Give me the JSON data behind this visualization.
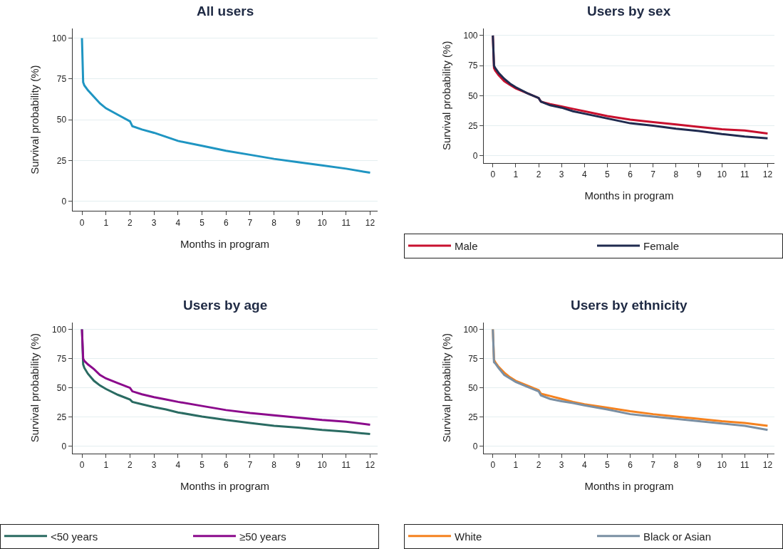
{
  "chart_data": [
    {
      "type": "line",
      "title": "All users",
      "xlabel": "Months in program",
      "ylabel": "Survival probability (%)",
      "x": [
        0,
        0.05,
        0.1,
        0.25,
        0.5,
        0.75,
        1,
        1.5,
        2,
        2.1,
        2.5,
        3,
        3.5,
        4,
        5,
        6,
        7,
        8,
        9,
        10,
        11,
        12
      ],
      "series": [
        {
          "color": "#1f95c2",
          "values": [
            100,
            73,
            71,
            68,
            64,
            60,
            57,
            53,
            49,
            46,
            44,
            42,
            39.5,
            37,
            34,
            31,
            28.5,
            26,
            24,
            22,
            20,
            17.5
          ]
        }
      ],
      "xlim": [
        -0.4,
        12.3
      ],
      "ylim": [
        -6,
        106
      ],
      "xticks": [
        0,
        1,
        2,
        3,
        4,
        5,
        6,
        7,
        8,
        9,
        10,
        11,
        12
      ],
      "yticks": [
        0,
        25,
        50,
        75,
        100
      ],
      "grid": "y",
      "legend": false
    },
    {
      "type": "line",
      "title": "Users by sex",
      "xlabel": "Months in program",
      "ylabel": "Survival probability (%)",
      "x": [
        0,
        0.05,
        0.1,
        0.25,
        0.5,
        0.75,
        1,
        1.5,
        2,
        2.1,
        2.5,
        3,
        3.5,
        4,
        5,
        6,
        7,
        8,
        9,
        10,
        11,
        12
      ],
      "series": [
        {
          "name": "Male",
          "color": "#c8102e",
          "values": [
            100,
            73,
            71,
            67,
            62,
            59,
            56,
            52,
            48,
            45,
            43,
            41,
            39,
            37,
            33,
            30,
            28,
            26,
            24,
            22,
            21,
            18.5
          ]
        },
        {
          "name": "Female",
          "color": "#1f2a4f",
          "values": [
            100,
            75,
            73,
            69,
            64,
            60,
            57,
            52,
            48,
            45,
            42,
            40,
            37,
            35,
            31,
            27,
            25,
            22.5,
            20.5,
            18,
            16,
            14.5
          ]
        }
      ],
      "xlim": [
        -0.4,
        12.3
      ],
      "ylim": [
        -6,
        106
      ],
      "xticks": [
        0,
        1,
        2,
        3,
        4,
        5,
        6,
        7,
        8,
        9,
        10,
        11,
        12
      ],
      "yticks": [
        0,
        25,
        50,
        75,
        100
      ],
      "grid": "y",
      "legend": "bottom"
    },
    {
      "type": "line",
      "title": "Users by age",
      "xlabel": "Months in program",
      "ylabel": "Survival probability (%)",
      "x": [
        0,
        0.05,
        0.1,
        0.25,
        0.5,
        0.75,
        1,
        1.5,
        2,
        2.1,
        2.5,
        3,
        3.5,
        4,
        5,
        6,
        7,
        8,
        9,
        10,
        11,
        12
      ],
      "series": [
        {
          "name": "<50 years",
          "color": "#2a6b62",
          "values": [
            100,
            70,
            67,
            62,
            56,
            52,
            49,
            44,
            40,
            38,
            36,
            33.5,
            31.5,
            29,
            25.5,
            22.5,
            20,
            17.5,
            16,
            14,
            12.5,
            10.5
          ]
        },
        {
          "name": "≥50 years",
          "color": "#8b0a8c",
          "values": [
            100,
            75,
            73,
            70,
            66,
            61,
            58,
            54,
            50,
            47,
            44.5,
            42,
            40,
            38,
            34.5,
            31,
            28.5,
            26.5,
            24.5,
            22.5,
            21,
            18.5
          ]
        }
      ],
      "xlim": [
        -0.4,
        12.3
      ],
      "ylim": [
        -6,
        106
      ],
      "xticks": [
        0,
        1,
        2,
        3,
        4,
        5,
        6,
        7,
        8,
        9,
        10,
        11,
        12
      ],
      "yticks": [
        0,
        25,
        50,
        75,
        100
      ],
      "grid": "y",
      "legend": "bottom"
    },
    {
      "type": "line",
      "title": "Users by ethnicity",
      "xlabel": "Months in program",
      "ylabel": "Survival probability (%)",
      "x": [
        0,
        0.05,
        0.1,
        0.25,
        0.5,
        0.75,
        1,
        1.5,
        2,
        2.1,
        2.5,
        3,
        3.5,
        4,
        5,
        6,
        7,
        8,
        9,
        10,
        11,
        12
      ],
      "series": [
        {
          "name": "White",
          "color": "#f5821f",
          "values": [
            100,
            74,
            72,
            68,
            63,
            59,
            56,
            52,
            48,
            45,
            43,
            40.5,
            38,
            36,
            33,
            30,
            27.5,
            25.5,
            23.5,
            21.5,
            20,
            17.5
          ]
        },
        {
          "name": "Black or Asian",
          "color": "#7a8fa3",
          "values": [
            100,
            72,
            71,
            67,
            61,
            58,
            55,
            51,
            47,
            43.5,
            40.5,
            38.5,
            37,
            35,
            31.5,
            27.5,
            25.5,
            23.5,
            21.5,
            19.5,
            17.5,
            14
          ]
        }
      ],
      "xlim": [
        -0.4,
        12.3
      ],
      "ylim": [
        -6,
        106
      ],
      "xticks": [
        0,
        1,
        2,
        3,
        4,
        5,
        6,
        7,
        8,
        9,
        10,
        11,
        12
      ],
      "yticks": [
        0,
        25,
        50,
        75,
        100
      ],
      "grid": "y",
      "legend": "bottom"
    }
  ]
}
